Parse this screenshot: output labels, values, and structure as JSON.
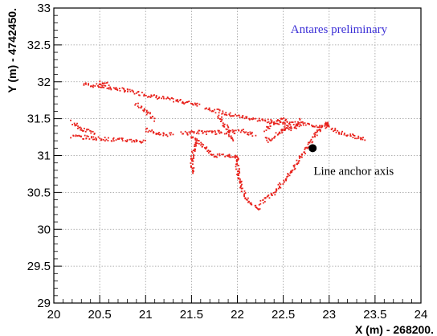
{
  "chart_data": {
    "type": "scatter",
    "xlabel": "X (m) - 268200.",
    "ylabel": "Y (m) - 4742450.",
    "xlim": [
      20,
      24
    ],
    "ylim": [
      29,
      33
    ],
    "x_ticks": [
      "20",
      "20.5",
      "21",
      "21.5",
      "22",
      "22.5",
      "23",
      "23.5",
      "24"
    ],
    "y_ticks": [
      "29",
      "29.5",
      "30",
      "30.5",
      "31",
      "31.5",
      "32",
      "32.5",
      "33"
    ],
    "grid": true,
    "point_color": "#e8201a",
    "tracks": [
      [
        [
          20.33,
          31.97
        ],
        [
          20.55,
          31.93
        ],
        [
          20.8,
          31.88
        ],
        [
          21.1,
          31.8
        ],
        [
          21.35,
          31.74
        ],
        [
          21.6,
          31.69
        ]
      ],
      [
        [
          20.5,
          31.98
        ],
        [
          20.52,
          32.0
        ],
        [
          20.6,
          31.95
        ]
      ],
      [
        [
          20.9,
          31.7
        ],
        [
          21.05,
          31.55
        ],
        [
          21.1,
          31.48
        ]
      ],
      [
        [
          21.65,
          31.65
        ],
        [
          21.9,
          31.56
        ],
        [
          22.2,
          31.49
        ],
        [
          22.45,
          31.45
        ],
        [
          22.7,
          31.43
        ],
        [
          22.9,
          31.4
        ],
        [
          23.0,
          31.4
        ]
      ],
      [
        [
          20.2,
          31.26
        ],
        [
          20.6,
          31.22
        ],
        [
          20.9,
          31.2
        ],
        [
          21.0,
          31.18
        ]
      ],
      [
        [
          20.2,
          31.46
        ],
        [
          20.3,
          31.36
        ],
        [
          20.45,
          31.3
        ]
      ],
      [
        [
          21.4,
          31.3
        ],
        [
          21.55,
          31.32
        ],
        [
          21.7,
          31.31
        ],
        [
          21.9,
          31.32
        ],
        [
          22.05,
          31.33
        ],
        [
          22.2,
          31.28
        ]
      ],
      [
        [
          21.5,
          31.26
        ],
        [
          21.65,
          31.1
        ],
        [
          21.75,
          31.0
        ],
        [
          21.95,
          31.0
        ],
        [
          22.0,
          30.98
        ]
      ],
      [
        [
          21.55,
          31.2
        ],
        [
          21.52,
          31.05
        ],
        [
          21.5,
          30.9
        ],
        [
          21.53,
          30.75
        ]
      ],
      [
        [
          21.8,
          31.55
        ],
        [
          21.85,
          31.43
        ],
        [
          21.9,
          31.35
        ],
        [
          21.95,
          31.2
        ]
      ],
      [
        [
          22.0,
          31.0
        ],
        [
          22.0,
          30.85
        ],
        [
          22.02,
          30.7
        ],
        [
          22.05,
          30.55
        ],
        [
          22.1,
          30.4
        ],
        [
          22.2,
          30.3
        ],
        [
          22.25,
          30.28
        ]
      ],
      [
        [
          22.25,
          30.35
        ],
        [
          22.4,
          30.5
        ],
        [
          22.5,
          30.65
        ],
        [
          22.6,
          30.8
        ],
        [
          22.7,
          31.0
        ],
        [
          22.8,
          31.2
        ],
        [
          22.9,
          31.35
        ],
        [
          23.0,
          31.45
        ]
      ],
      [
        [
          22.3,
          31.35
        ],
        [
          22.4,
          31.45
        ],
        [
          22.5,
          31.5
        ],
        [
          22.55,
          31.4
        ],
        [
          22.45,
          31.3
        ],
        [
          22.35,
          31.2
        ],
        [
          22.3,
          31.25
        ]
      ],
      [
        [
          22.5,
          31.35
        ],
        [
          22.65,
          31.38
        ],
        [
          22.7,
          31.5
        ]
      ],
      [
        [
          22.95,
          31.45
        ],
        [
          23.05,
          31.35
        ],
        [
          23.15,
          31.3
        ],
        [
          23.3,
          31.25
        ],
        [
          23.4,
          31.22
        ]
      ],
      [
        [
          21.0,
          31.35
        ],
        [
          21.1,
          31.3
        ],
        [
          21.3,
          31.28
        ]
      ]
    ],
    "marker": {
      "x": 22.82,
      "y": 31.1
    },
    "annotations": [
      {
        "text": "Line anchor axis",
        "x": 22.83,
        "y": 30.74
      },
      {
        "text": "Antares preliminary",
        "x": 22.58,
        "y": 32.66
      }
    ]
  }
}
